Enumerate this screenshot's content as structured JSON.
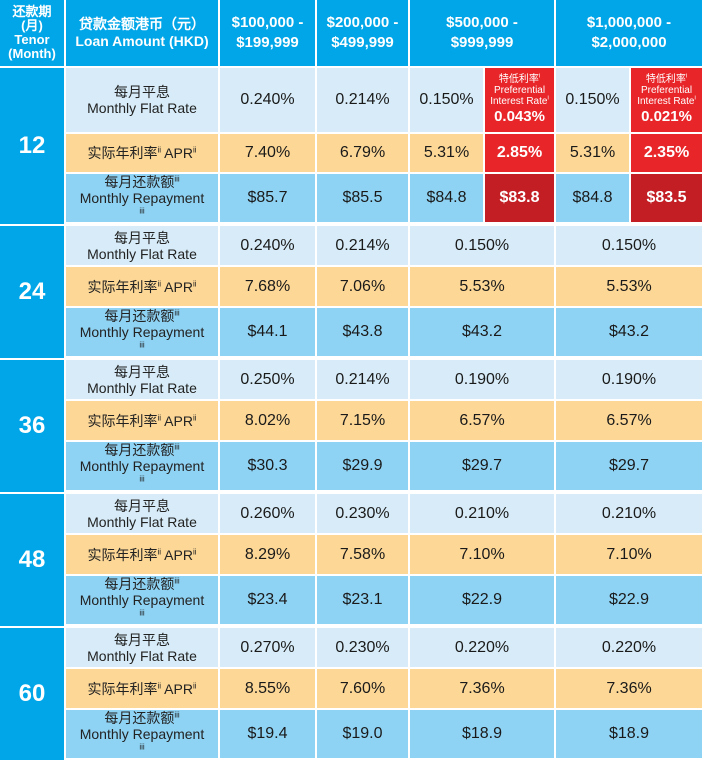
{
  "header": {
    "tenor": {
      "zh": "还款期",
      "zh2": "(月)",
      "en1": "Tenor",
      "en2": "(Month)"
    },
    "loan_amount": {
      "zh": "贷款金额港币（元）",
      "en": "Loan Amount (HKD)"
    },
    "tiers": [
      {
        "line1": "$100,000 -",
        "line2": "$199,999"
      },
      {
        "line1": "$200,000 -",
        "line2": "$499,999"
      },
      {
        "line1": "$500,000 -",
        "line2": "$999,999"
      },
      {
        "line1": "$1,000,000 -",
        "line2": "$2,000,000"
      }
    ]
  },
  "row_labels": {
    "flat": {
      "zh": "每月平息",
      "en": "Monthly Flat Rate"
    },
    "apr": {
      "zh": "实际年利率",
      "sup": "ii",
      "en": "APR",
      "en_sup": "ii"
    },
    "repay": {
      "zh": "每月还款额",
      "zh_sup": "iii",
      "en": "Monthly Repayment",
      "en_sup": "iii"
    }
  },
  "preferential_label": {
    "zh": "特低利率",
    "zh_sup": "i",
    "en1": "Preferential",
    "en2": "Interest Rate",
    "en_sup": "i"
  },
  "tenors": [
    {
      "months": "12",
      "flat": [
        "0.240%",
        "0.214%",
        "0.150%",
        "0.150%"
      ],
      "flat_preferential": [
        null,
        null,
        "0.043%",
        "0.021%"
      ],
      "apr": [
        "7.40%",
        "6.79%",
        "5.31%",
        "5.31%"
      ],
      "apr_preferential": [
        null,
        null,
        "2.85%",
        "2.35%"
      ],
      "repay": [
        "$85.7",
        "$85.5",
        "$84.8",
        "$84.8"
      ],
      "repay_preferential": [
        null,
        null,
        "$83.8",
        "$83.5"
      ]
    },
    {
      "months": "24",
      "flat": [
        "0.240%",
        "0.214%",
        "0.150%",
        "0.150%"
      ],
      "apr": [
        "7.68%",
        "7.06%",
        "5.53%",
        "5.53%"
      ],
      "repay": [
        "$44.1",
        "$43.8",
        "$43.2",
        "$43.2"
      ]
    },
    {
      "months": "36",
      "flat": [
        "0.250%",
        "0.214%",
        "0.190%",
        "0.190%"
      ],
      "apr": [
        "8.02%",
        "7.15%",
        "6.57%",
        "6.57%"
      ],
      "repay": [
        "$30.3",
        "$29.9",
        "$29.7",
        "$29.7"
      ]
    },
    {
      "months": "48",
      "flat": [
        "0.260%",
        "0.230%",
        "0.210%",
        "0.210%"
      ],
      "apr": [
        "8.29%",
        "7.58%",
        "7.10%",
        "7.10%"
      ],
      "repay": [
        "$23.4",
        "$23.1",
        "$22.9",
        "$22.9"
      ]
    },
    {
      "months": "60",
      "flat": [
        "0.270%",
        "0.230%",
        "0.220%",
        "0.220%"
      ],
      "apr": [
        "8.55%",
        "7.60%",
        "7.36%",
        "7.36%"
      ],
      "repay": [
        "$19.4",
        "$19.0",
        "$18.9",
        "$18.9"
      ]
    }
  ],
  "colors": {
    "header_blue": "#00a6e8",
    "flat_row": "#d7ecf8",
    "apr_row": "#fcd796",
    "repay_row": "#8fd3f4",
    "preferential_red": "#e8262a",
    "preferential_dark_red": "#c21e24"
  }
}
